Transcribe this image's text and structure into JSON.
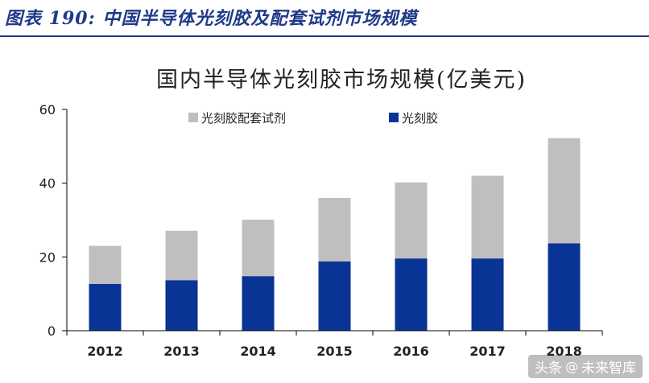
{
  "figure_caption": "图表 190:  中国半导体光刻胶及配套试剂市场规模",
  "watermark": {
    "platform": "头条",
    "at": "@",
    "account": "未来智库"
  },
  "colors": {
    "caption": "#1f3a8a",
    "resist": "#0a3396",
    "reagent": "#bfbfbf",
    "axis": "#000000"
  },
  "chart_data": {
    "type": "bar",
    "stacked": true,
    "title": "国内半导体光刻胶市场规模(亿美元)",
    "xlabel": "",
    "ylabel": "",
    "categories": [
      "2012",
      "2013",
      "2014",
      "2015",
      "2016",
      "2017",
      "2018"
    ],
    "series": [
      {
        "name": "光刻胶",
        "color": "#0a3396",
        "values": [
          12.7,
          13.7,
          14.8,
          18.8,
          19.6,
          19.6,
          23.7
        ]
      },
      {
        "name": "光刻胶配套试剂",
        "color": "#bfbfbf",
        "values": [
          10.3,
          13.4,
          15.3,
          17.2,
          20.6,
          22.4,
          28.5
        ]
      }
    ],
    "ylim": [
      0,
      60
    ],
    "yticks": [
      0,
      20,
      40,
      60
    ],
    "grid": false,
    "legend": "top"
  }
}
